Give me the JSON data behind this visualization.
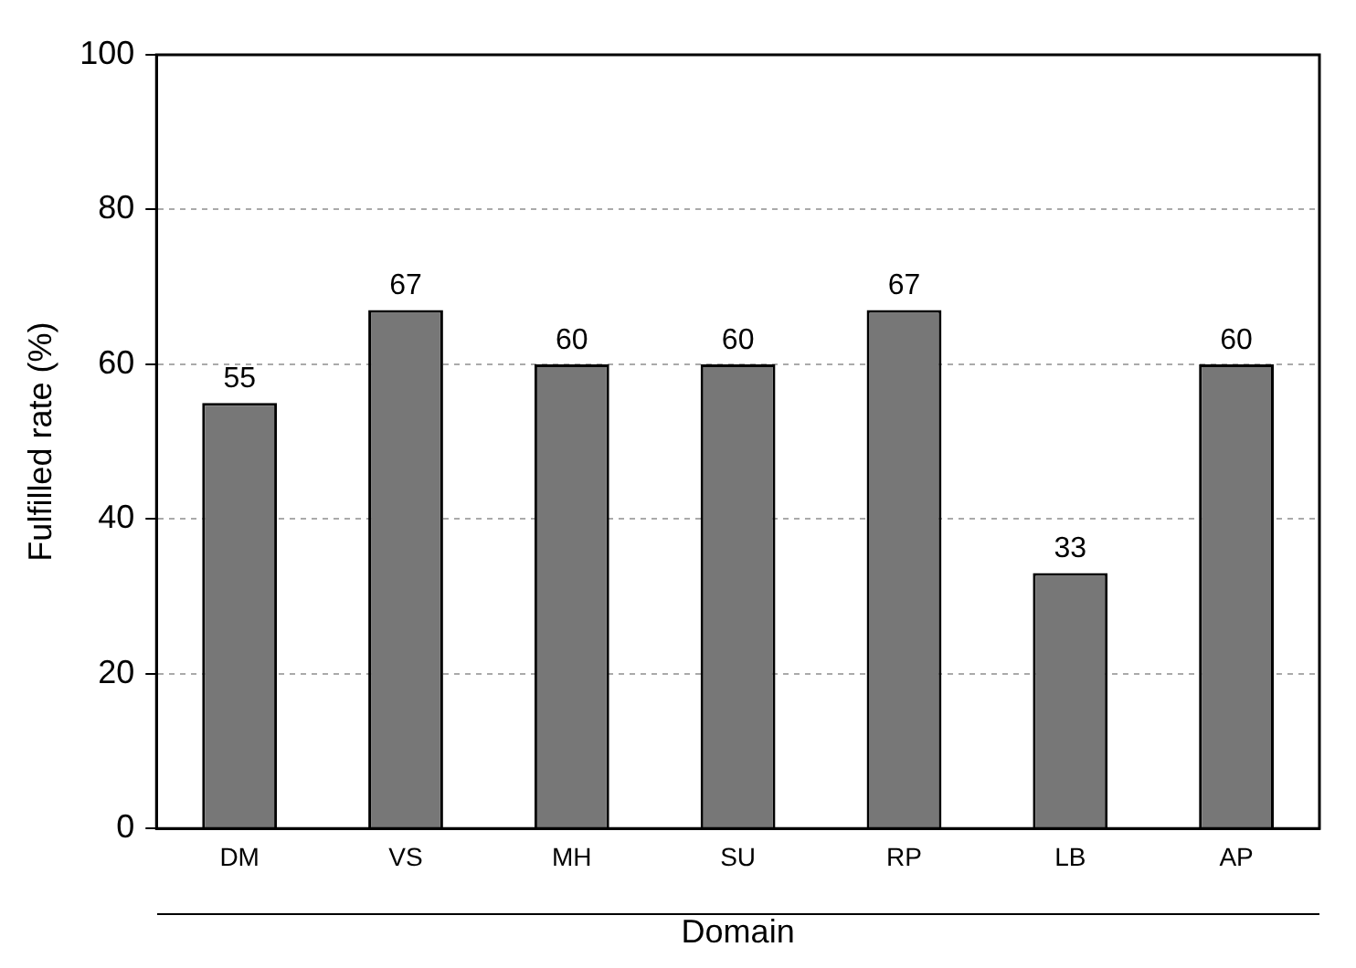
{
  "chart_data": {
    "type": "bar",
    "xlabel": "Domain",
    "ylabel": "Fulfilled rate (%)",
    "categories": [
      "DM",
      "VS",
      "MH",
      "SU",
      "RP",
      "LB",
      "AP"
    ],
    "values": [
      55,
      67,
      60,
      60,
      67,
      33,
      60
    ],
    "color": "#777777",
    "ylim": [
      0,
      100
    ],
    "yticks": [
      0,
      20,
      40,
      60,
      80,
      100
    ],
    "grid": "y",
    "data_labels": true
  }
}
